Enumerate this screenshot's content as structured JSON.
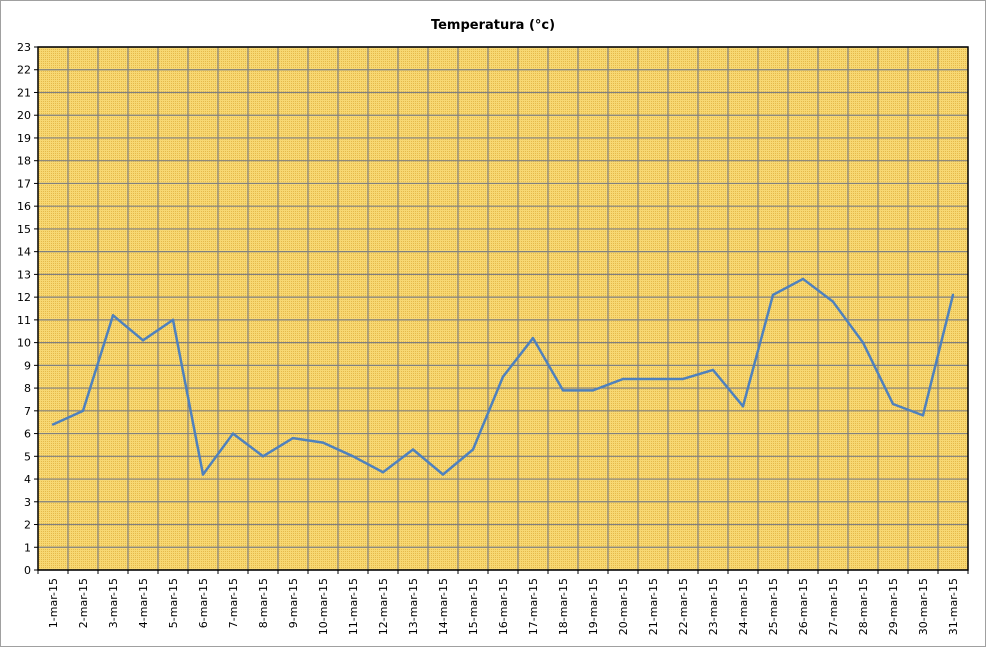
{
  "chart_data": {
    "type": "line",
    "title": "Temperatura (°c)",
    "xlabel": "",
    "ylabel": "",
    "ylim": [
      0,
      23
    ],
    "y_ticks": [
      0,
      1,
      2,
      3,
      4,
      5,
      6,
      7,
      8,
      9,
      10,
      11,
      12,
      13,
      14,
      15,
      16,
      17,
      18,
      19,
      20,
      21,
      22,
      23
    ],
    "grid": true,
    "legend": "none",
    "categories": [
      "1-mar-15",
      "2-mar-15",
      "3-mar-15",
      "4-mar-15",
      "5-mar-15",
      "6-mar-15",
      "7-mar-15",
      "8-mar-15",
      "9-mar-15",
      "10-mar-15",
      "11-mar-15",
      "12-mar-15",
      "13-mar-15",
      "14-mar-15",
      "15-mar-15",
      "16-mar-15",
      "17-mar-15",
      "18-mar-15",
      "19-mar-15",
      "20-mar-15",
      "21-mar-15",
      "22-mar-15",
      "23-mar-15",
      "24-mar-15",
      "25-mar-15",
      "26-mar-15",
      "27-mar-15",
      "28-mar-15",
      "29-mar-15",
      "30-mar-15",
      "31-mar-15"
    ],
    "series": [
      {
        "values": [
          6.4,
          7.0,
          11.2,
          10.1,
          11.0,
          4.2,
          6.0,
          5.0,
          5.8,
          5.6,
          5.0,
          4.3,
          5.3,
          4.2,
          5.3,
          8.5,
          10.2,
          7.9,
          7.9,
          8.4,
          8.4,
          8.4,
          8.8,
          7.2,
          12.1,
          12.8,
          11.8,
          10.0,
          7.3,
          6.8,
          12.1
        ],
        "color": "#4f81bd"
      }
    ],
    "colors": {
      "plot_background": "#f5d16b",
      "grid": "#808080",
      "axis": "#000000"
    }
  }
}
